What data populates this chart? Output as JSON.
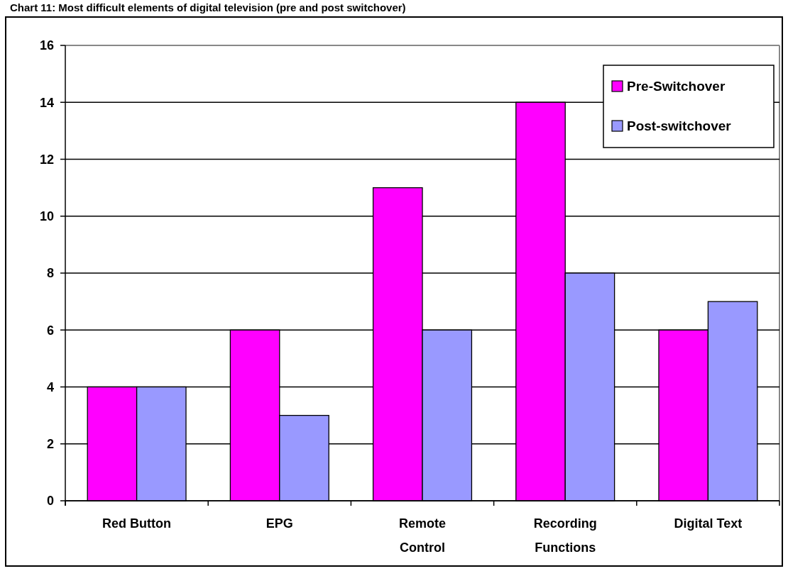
{
  "chart_data": {
    "type": "bar",
    "title": "Chart 11: Most difficult elements of digital television (pre and post switchover)",
    "categories": [
      "Red Button",
      "EPG",
      "Remote Control",
      "Recording Functions",
      "Digital Text"
    ],
    "series": [
      {
        "name": "Pre-Switchover",
        "color": "#ff00ff",
        "values": [
          4,
          6,
          11,
          14,
          6
        ]
      },
      {
        "name": "Post-switchover",
        "color": "#9999ff",
        "values": [
          4,
          3,
          6,
          8,
          7
        ]
      }
    ],
    "ylim": [
      0,
      16
    ],
    "yticks": [
      0,
      2,
      4,
      6,
      8,
      10,
      12,
      14,
      16
    ],
    "grid": "y",
    "legend": "top right"
  }
}
